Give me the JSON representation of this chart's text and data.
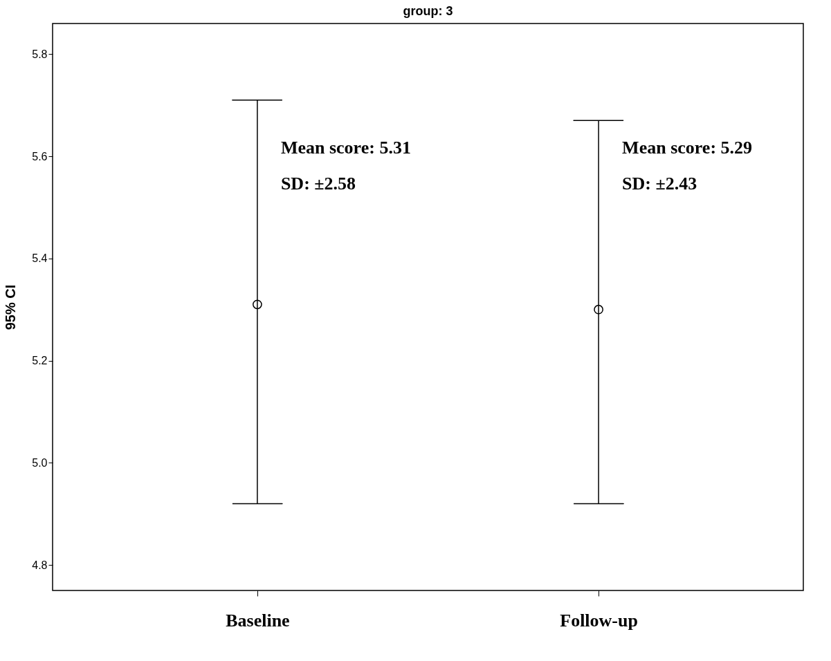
{
  "chart_data": {
    "type": "scatter",
    "title": "group: 3",
    "ylabel": "95% CI",
    "categories": [
      "Baseline",
      "Follow-up"
    ],
    "values": [
      5.31,
      5.3
    ],
    "errors": [
      [
        4.92,
        5.71
      ],
      [
        4.92,
        5.67
      ]
    ],
    "color": "#000000",
    "marker": "circle",
    "ylim": [
      4.75,
      5.86
    ],
    "yticks": [
      4.8,
      {
        "value": 5.0,
        "label": "5.0"
      },
      5.2,
      5.4,
      5.6,
      5.8
    ],
    "grid": false,
    "legend": false,
    "annotations": [
      "Mean score: 5.31",
      "SD: ±2.58",
      "Mean score: 5.29",
      "SD: ±2.43"
    ]
  }
}
